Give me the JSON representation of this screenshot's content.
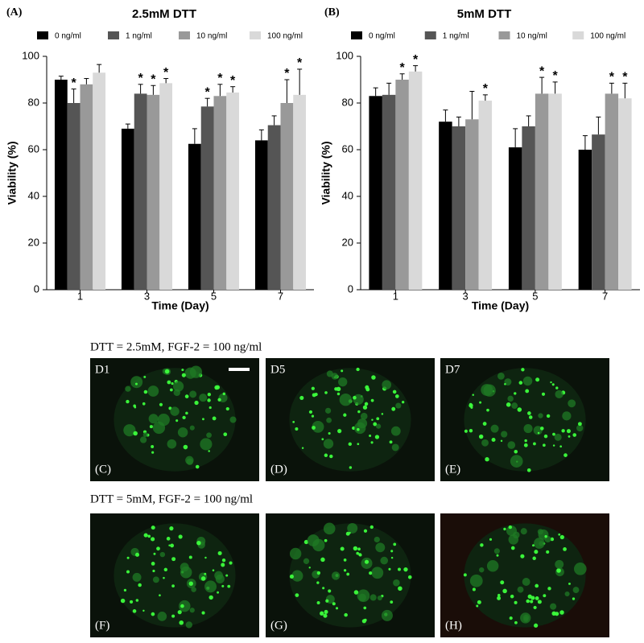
{
  "chart_data": [
    {
      "type": "bar",
      "panel_label": "(A)",
      "title": "2.5mM DTT",
      "x_label": "Time (Day)",
      "y_label": "Viability (%)",
      "categories": [
        "1",
        "3",
        "5",
        "7"
      ],
      "ylim": [
        0,
        100
      ],
      "yticks": [
        0,
        20,
        40,
        60,
        80,
        100
      ],
      "series": [
        {
          "name": "0 ng/ml",
          "color": "#000000",
          "values": [
            90,
            69,
            62.5,
            64
          ],
          "errors": [
            1.5,
            2,
            6.5,
            4.5
          ],
          "markers": [
            null,
            null,
            null,
            null
          ]
        },
        {
          "name": "1 ng/ml",
          "color": "#555555",
          "values": [
            80,
            84,
            78.5,
            70.5
          ],
          "errors": [
            6,
            4,
            3.5,
            4
          ],
          "markers": [
            "*",
            "*",
            "*",
            null
          ]
        },
        {
          "name": "10 ng/ml",
          "color": "#999999",
          "values": [
            88,
            83.5,
            83,
            80
          ],
          "errors": [
            2.5,
            4,
            5,
            10
          ],
          "markers": [
            null,
            "*",
            "*",
            "*"
          ]
        },
        {
          "name": "100 ng/ml",
          "color": "#d9d9d9",
          "values": [
            93,
            88.5,
            84.5,
            83.5
          ],
          "errors": [
            3.5,
            2,
            2.5,
            11
          ],
          "markers": [
            null,
            "*",
            "*",
            "*"
          ]
        }
      ]
    },
    {
      "type": "bar",
      "panel_label": "(B)",
      "title": "5mM  DTT",
      "x_label": "Time (Day)",
      "y_label": "Viability (%)",
      "categories": [
        "1",
        "3",
        "5",
        "7"
      ],
      "ylim": [
        0,
        100
      ],
      "yticks": [
        0,
        20,
        40,
        60,
        80,
        100
      ],
      "series": [
        {
          "name": "0 ng/ml",
          "color": "#000000",
          "values": [
            83,
            72,
            61,
            60
          ],
          "errors": [
            3.5,
            5,
            8,
            6
          ],
          "markers": [
            null,
            null,
            null,
            null
          ]
        },
        {
          "name": "1 ng/ml",
          "color": "#555555",
          "values": [
            83.5,
            70,
            70,
            66.5
          ],
          "errors": [
            5,
            4,
            4.5,
            7.5
          ],
          "markers": [
            null,
            null,
            null,
            null
          ]
        },
        {
          "name": "10 ng/ml",
          "color": "#999999",
          "values": [
            90,
            73,
            84,
            84
          ],
          "errors": [
            2.5,
            12,
            7,
            4.5
          ],
          "markers": [
            "*",
            null,
            "*",
            "*"
          ]
        },
        {
          "name": "100 ng/ml",
          "color": "#d9d9d9",
          "values": [
            93.5,
            81,
            84,
            82
          ],
          "errors": [
            2.5,
            2.5,
            5,
            6.5
          ],
          "markers": [
            "*",
            "*",
            "*",
            "*"
          ]
        }
      ]
    }
  ],
  "images": {
    "rows": [
      {
        "caption": "DTT = 2.5mM, FGF-2 = 100 ng/ml",
        "panels": [
          {
            "day": "D1",
            "label": "(C)"
          },
          {
            "day": "D5",
            "label": "(D)"
          },
          {
            "day": "D7",
            "label": "(E)"
          }
        ]
      },
      {
        "caption": "DTT = 5mM, FGF-2 = 100 ng/ml",
        "panels": [
          {
            "label": "(F)"
          },
          {
            "label": "(G)"
          },
          {
            "label": "(H)"
          }
        ]
      }
    ]
  }
}
